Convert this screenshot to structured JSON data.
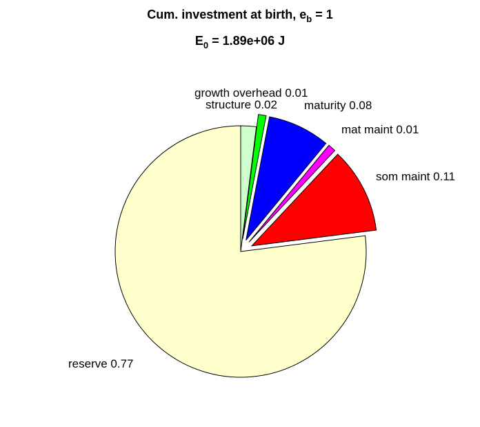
{
  "chart_data": {
    "type": "pie",
    "title": [
      "Cum. investment at birth, e",
      "b",
      " = 1"
    ],
    "subtitle": [
      "E",
      "0",
      " = 1.89e+06 J"
    ],
    "categories": [
      "structure",
      "growth overhead",
      "maturity",
      "mat maint",
      "som maint",
      "reserve"
    ],
    "values": [
      0.02,
      0.01,
      0.08,
      0.01,
      0.11,
      0.77
    ],
    "colors": [
      "#ccffcc",
      "#00ff00",
      "#0000ff",
      "#ff00ff",
      "#ff0000",
      "#ffffcc"
    ],
    "explode": [
      0,
      1,
      1,
      1,
      1,
      0
    ]
  }
}
